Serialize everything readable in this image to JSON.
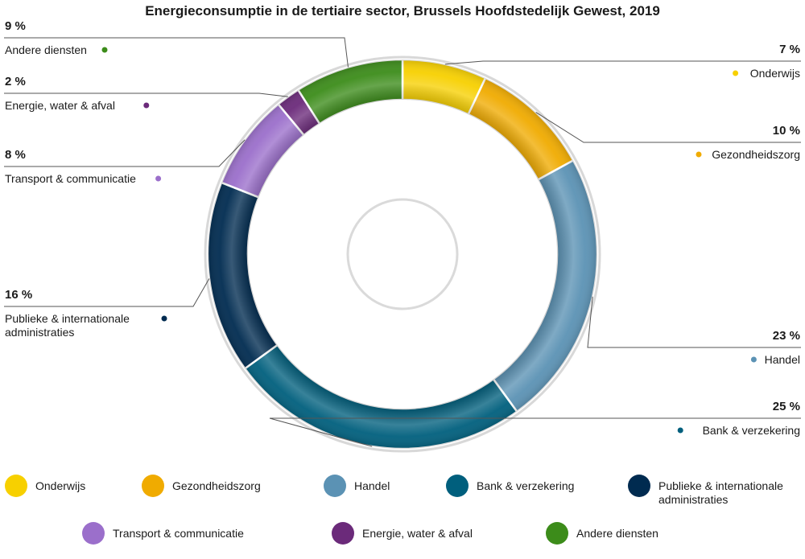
{
  "chart_data": {
    "type": "pie",
    "title": "Energieconsumptie in de tertiaire sector, Brussels Hoofdstedelijk Gewest, 2019",
    "unit": "%",
    "slices": [
      {
        "name": "Onderwijs",
        "value": 7,
        "pct_label": "7 %",
        "color": "#f7d000",
        "label_lines": [
          "Onderwijs"
        ]
      },
      {
        "name": "Gezondheidszorg",
        "value": 10,
        "pct_label": "10 %",
        "color": "#f0ab00",
        "label_lines": [
          "Gezondheidszorg"
        ]
      },
      {
        "name": "Handel",
        "value": 23,
        "pct_label": "23 %",
        "color": "#5b92b4",
        "label_lines": [
          "Handel"
        ]
      },
      {
        "name": "Bank & verzekering",
        "value": 25,
        "pct_label": "25 %",
        "color": "#005f7d",
        "label_lines": [
          "Bank & verzekering"
        ]
      },
      {
        "name": "Publieke & internationale administraties",
        "value": 16,
        "pct_label": "16 %",
        "color": "#002b50",
        "label_lines": [
          "Publieke & internationale",
          "administraties"
        ]
      },
      {
        "name": "Transport & communicatie",
        "value": 8,
        "pct_label": "8 %",
        "color": "#9b6fcb",
        "label_lines": [
          "Transport & communicatie"
        ]
      },
      {
        "name": "Energie, water & afval",
        "value": 2,
        "pct_label": "2 %",
        "color": "#6b2a7a",
        "label_lines": [
          "Energie, water & afval"
        ]
      },
      {
        "name": "Andere diensten",
        "value": 9,
        "pct_label": "9 %",
        "color": "#3c8c1a",
        "label_lines": [
          "Andere diensten"
        ]
      }
    ],
    "legend": [
      {
        "lines": [
          "Onderwijs"
        ],
        "color": "#f7d000"
      },
      {
        "lines": [
          "Gezondheidszorg"
        ],
        "color": "#f0ab00"
      },
      {
        "lines": [
          "Handel"
        ],
        "color": "#5b92b4"
      },
      {
        "lines": [
          "Bank & verzekering"
        ],
        "color": "#005f7d"
      },
      {
        "lines": [
          "Publieke & internationale",
          "administraties"
        ],
        "color": "#002b50"
      },
      {
        "lines": [
          "Transport & communicatie"
        ],
        "color": "#9b6fcb"
      },
      {
        "lines": [
          "Energie, water & afval"
        ],
        "color": "#6b2a7a"
      },
      {
        "lines": [
          "Andere diensten"
        ],
        "color": "#3c8c1a"
      }
    ]
  }
}
